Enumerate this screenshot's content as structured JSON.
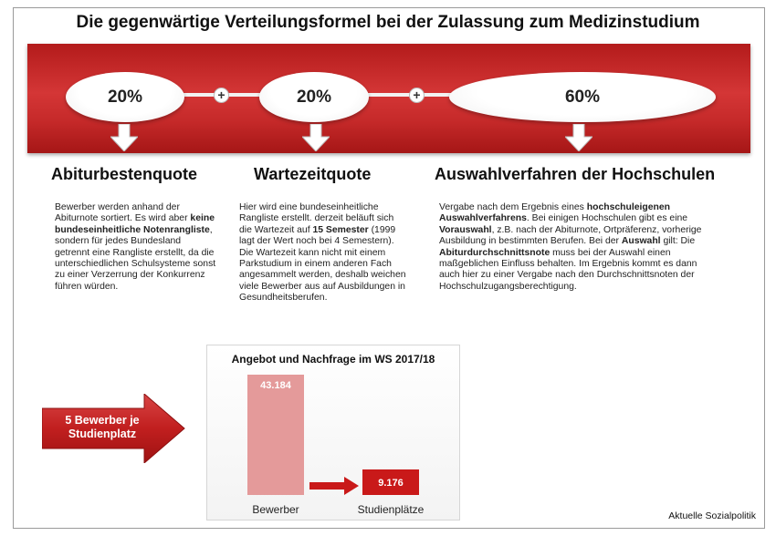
{
  "title": "Die gegenwärtige Verteilungsformel bei der Zulassung zum Medizinstudium",
  "quotas": [
    {
      "percent": "20%",
      "heading": "Abiturbestenquote",
      "description": [
        {
          "text": "Bewerber werden anhand der Abiturnote sortiert. Es wird aber ",
          "bold": false
        },
        {
          "text": "keine bundeseinheitliche Notenrangliste",
          "bold": true
        },
        {
          "text": ", sondern für jedes Bundesland getrennt eine Rangliste erstellt, da die unterschiedlichen Schulsysteme sonst zu einer Verzerrung der Konkurrenz führen würden.",
          "bold": false
        }
      ]
    },
    {
      "percent": "20%",
      "heading": "Wartezeitquote",
      "description": [
        {
          "text": "Hier wird eine bundeseinheitliche Rangliste erstellt. derzeit beläuft sich die Wartezeit auf ",
          "bold": false
        },
        {
          "text": "15 Semester",
          "bold": true
        },
        {
          "text": " (1999 lagt der Wert noch bei 4 Semestern). Die Wartezeit kann nicht mit einem Parkstudium in einem anderen Fach angesammelt werden, deshalb weichen viele Bewerber aus auf Ausbildungen in Gesundheitsberufen.",
          "bold": false
        }
      ]
    },
    {
      "percent": "60%",
      "heading": "Auswahlverfahren der Hochschulen",
      "description": [
        {
          "text": "Vergabe nach dem Ergebnis eines ",
          "bold": false
        },
        {
          "text": "hochschuleigenen Auswahlverfahrens",
          "bold": true
        },
        {
          "text": ". Bei einigen Hochschulen gibt es eine ",
          "bold": false
        },
        {
          "text": "Vorauswahl",
          "bold": true
        },
        {
          "text": ", z.B. nach der Abiturnote, Ortpräferenz, vorherige Ausbildung in bestimmten Berufen. Bei der ",
          "bold": false
        },
        {
          "text": "Auswahl",
          "bold": true
        },
        {
          "text": " gilt: Die ",
          "bold": false
        },
        {
          "text": "Abiturdurchschnittsnote",
          "bold": true
        },
        {
          "text": " muss bei der Auswahl einen maßgeblichen Einfluss behalten. Im Ergebnis kommt es dann auch hier zu einer Vergabe nach den Durchschnittsnoten der Hochschulzugangsberechtigung.",
          "bold": false
        }
      ]
    }
  ],
  "plus_symbol": "+",
  "ratio_arrow_text": "5 Bewerber je Studienplatz",
  "chart_data": {
    "type": "bar",
    "title": "Angebot und Nachfrage im WS 2017/18",
    "categories": [
      "Bewerber",
      "Studienplätze"
    ],
    "values": [
      43184,
      9176
    ],
    "value_labels": [
      "43.184",
      "9.176"
    ],
    "colors": [
      "#e49a9a",
      "#c91919"
    ],
    "ylim": [
      0,
      43184
    ],
    "grid": false,
    "legend": "none"
  },
  "credit": "Aktuelle Sozialpolitik",
  "colors": {
    "band_red": "#c62a2a",
    "arrow_red": "#c11f1f",
    "bar_light": "#e49a9a",
    "bar_dark": "#c91919"
  }
}
